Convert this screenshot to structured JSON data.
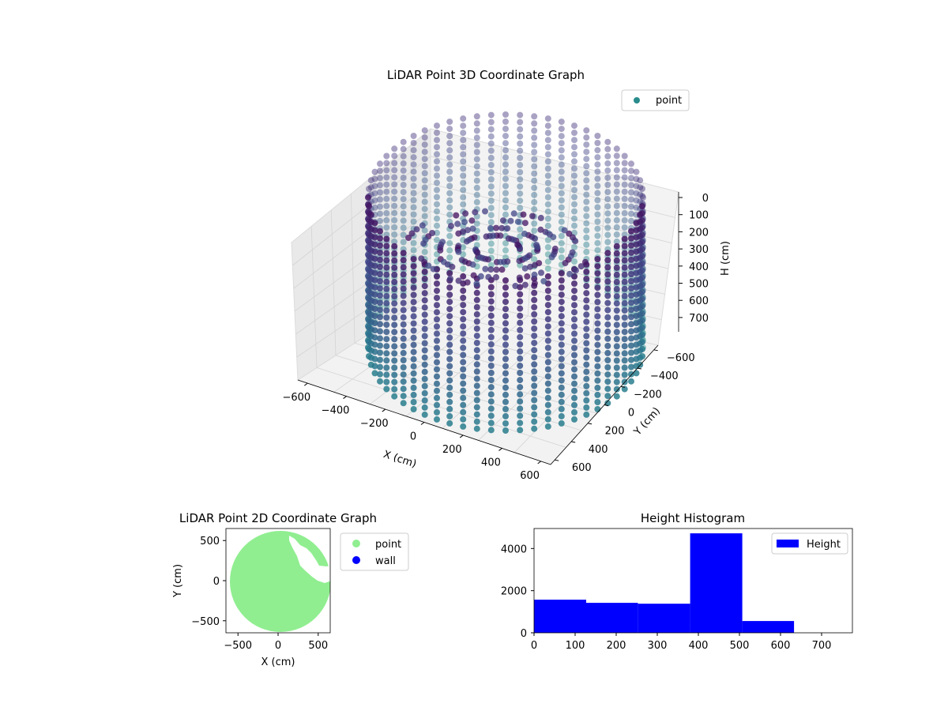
{
  "colors": {
    "legend_point_3d": "#2a8c8c",
    "scatter_2d_point": "#90ee90",
    "scatter_2d_wall": "#0000ff",
    "histogram": "#0000ff",
    "axis_3d_pane": "#f2f2f2"
  },
  "chart_data": [
    {
      "type": "scatter",
      "title": "LiDAR Point 3D Coordinate Graph",
      "xlabel": "X (cm)",
      "ylabel": "Y (cm)",
      "zlabel": "H (cm)",
      "xticks": [
        "−600",
        "−400",
        "−200",
        "0",
        "200",
        "400",
        "600"
      ],
      "yticks": [
        "−600",
        "−400",
        "−200",
        "0",
        "200",
        "400",
        "600"
      ],
      "zticks": [
        "0",
        "100",
        "200",
        "300",
        "400",
        "500",
        "600",
        "700"
      ],
      "xlim": [
        -650,
        650
      ],
      "ylim": [
        -650,
        650
      ],
      "zlim": [
        0,
        760
      ],
      "zaxis_inverted": true,
      "colormap": "viridis",
      "legend": [
        "point"
      ],
      "legend_position": "upper right",
      "series": [
        {
          "name": "point",
          "shape": "cylindrical wall of points, radius approximately 600",
          "radius": 600,
          "height_range": [
            0,
            750
          ]
        }
      ]
    },
    {
      "type": "scatter",
      "title": "LiDAR Point 2D Coordinate Graph",
      "xlabel": "X (cm)",
      "ylabel": "Y (cm)",
      "xticks": [
        "−500",
        "0",
        "500"
      ],
      "yticks": [
        "500",
        "0",
        "−500"
      ],
      "xlim": [
        -650,
        650
      ],
      "ylim": [
        -650,
        650
      ],
      "legend": [
        "point",
        "wall"
      ],
      "legend_position": "outside right",
      "series": [
        {
          "name": "point",
          "shape": "filled disc radius approximately 620 with notch near upper right"
        },
        {
          "name": "wall",
          "values": []
        }
      ]
    },
    {
      "type": "bar",
      "title": "Height Histogram",
      "xlabel": "",
      "ylabel": "",
      "bin_edges": [
        0,
        127,
        253,
        380,
        507,
        633,
        760
      ],
      "values": [
        1570,
        1420,
        1380,
        4720,
        560,
        0
      ],
      "xticks": [
        "0",
        "100",
        "200",
        "300",
        "400",
        "500",
        "600",
        "700"
      ],
      "yticks": [
        "0",
        "2000",
        "4000"
      ],
      "xlim": [
        0,
        775
      ],
      "ylim": [
        0,
        4950
      ],
      "legend": [
        "Height"
      ],
      "legend_position": "upper right"
    }
  ]
}
